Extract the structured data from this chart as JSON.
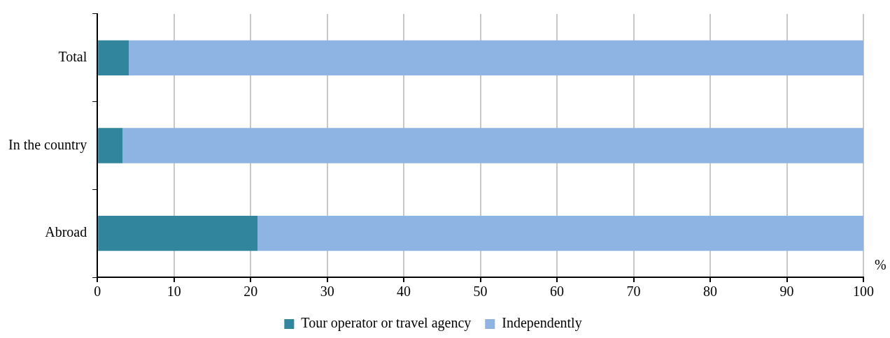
{
  "chart_data": {
    "type": "bar",
    "orientation": "horizontal",
    "stacked": true,
    "categories": [
      "Total",
      "In the country",
      "Abroad"
    ],
    "series": [
      {
        "name": "Tour operator or travel agency",
        "color": "#31859c",
        "values": [
          4.1,
          3.3,
          20.9
        ]
      },
      {
        "name": "Independently",
        "color": "#8eb4e3",
        "values": [
          95.9,
          96.7,
          79.1
        ]
      }
    ],
    "xlabel": "%",
    "xlim": [
      0,
      100
    ],
    "xticks": [
      0,
      10,
      20,
      30,
      40,
      50,
      60,
      70,
      80,
      90,
      100
    ],
    "grid": "x",
    "legend": "bottom"
  }
}
